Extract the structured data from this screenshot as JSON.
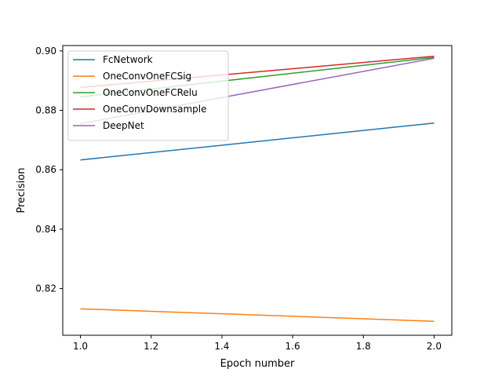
{
  "chart_data": {
    "type": "line",
    "title": "",
    "xlabel": "Epoch number",
    "ylabel": "Precision",
    "xlim": [
      0.95,
      2.05
    ],
    "ylim": [
      0.8043,
      0.9018
    ],
    "xticks": [
      1.0,
      1.2,
      1.4,
      1.6,
      1.8,
      2.0
    ],
    "xtick_labels": [
      "1.0",
      "1.2",
      "1.4",
      "1.6",
      "1.8",
      "2.0"
    ],
    "yticks": [
      0.82,
      0.84,
      0.86,
      0.88,
      0.9
    ],
    "ytick_labels": [
      "0.82",
      "0.84",
      "0.86",
      "0.88",
      "0.90"
    ],
    "grid": false,
    "legend_position": "top-left",
    "x": [
      1.0,
      2.0
    ],
    "series": [
      {
        "name": "FcNetwork",
        "color": "#1f77b4",
        "values": [
          0.8633,
          0.8757
        ]
      },
      {
        "name": "OneConvOneFCSig",
        "color": "#ff7f0e",
        "values": [
          0.8132,
          0.809
        ]
      },
      {
        "name": "OneConvOneFCRelu",
        "color": "#2ca02c",
        "values": [
          0.8845,
          0.8978
        ]
      },
      {
        "name": "OneConvDownsample",
        "color": "#d62728",
        "values": [
          0.8877,
          0.8982
        ]
      },
      {
        "name": "DeepNet",
        "color": "#9467bd",
        "values": [
          0.8755,
          0.8975
        ]
      }
    ]
  }
}
